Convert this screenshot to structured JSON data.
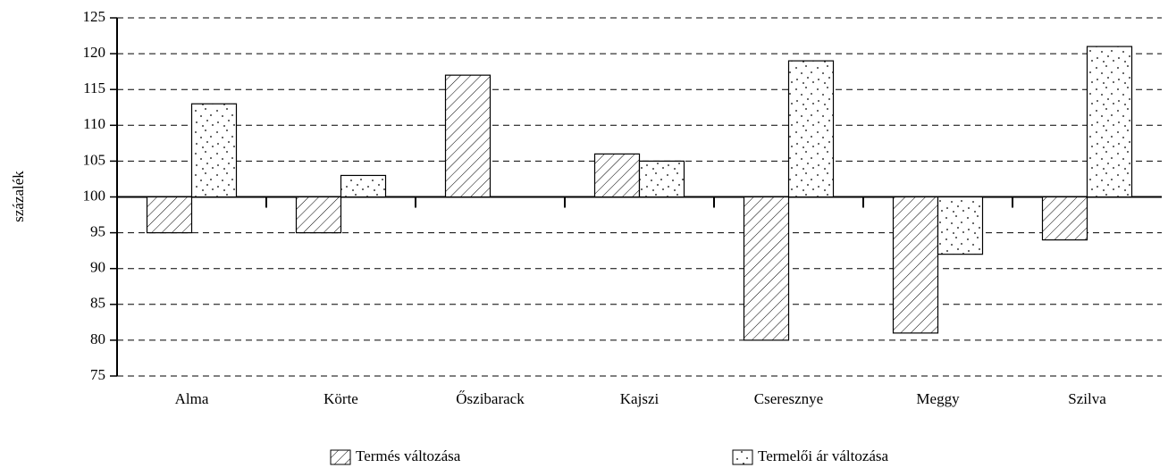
{
  "chart_data": {
    "type": "bar",
    "y_label": "százalék",
    "categories": [
      "Alma",
      "Körte",
      "Őszibarack",
      "Kajszi",
      "Cseresznye",
      "Meggy",
      "Szilva"
    ],
    "series": [
      {
        "name": "Termés változása",
        "color": "#000000",
        "pattern": "hatch",
        "values": [
          95,
          95,
          117,
          106,
          80,
          81,
          94
        ]
      },
      {
        "name": "Termelői ár változása",
        "color": "#000000",
        "pattern": "dots",
        "values": [
          113,
          103,
          null,
          105,
          119,
          92,
          121
        ]
      }
    ],
    "baseline": 100,
    "ylim": [
      75,
      125
    ],
    "yticks": [
      75,
      80,
      85,
      90,
      95,
      100,
      105,
      110,
      115,
      120,
      125
    ],
    "grid": true,
    "legend": "bottom"
  }
}
